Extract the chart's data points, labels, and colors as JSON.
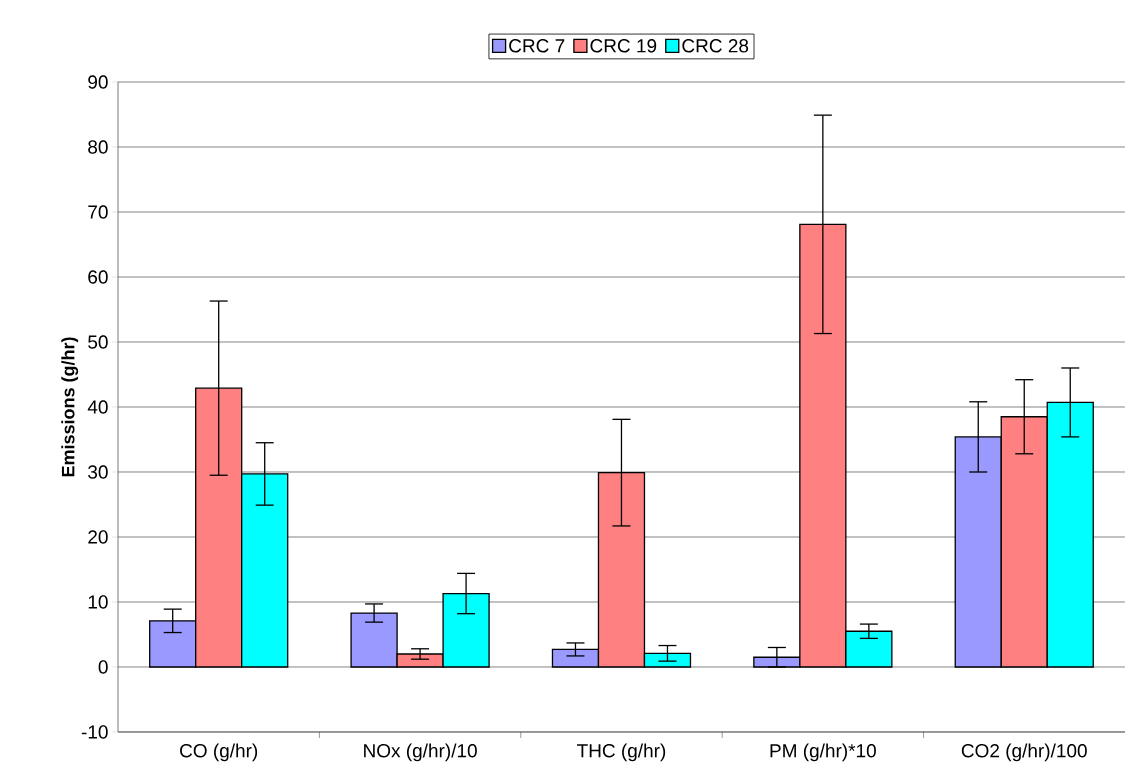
{
  "chart_data": {
    "type": "bar",
    "ylabel": "Emissions (g/hr)",
    "categories": [
      "CO (g/hr)",
      "NOx (g/hr)/10",
      "THC (g/hr)",
      "PM (g/hr)*10",
      "CO2 (g/hr)/100"
    ],
    "series": [
      {
        "name": "CRC 7",
        "color": "#9999ff",
        "values": [
          7.1,
          8.3,
          2.7,
          1.5,
          35.4
        ],
        "errors": [
          1.8,
          1.4,
          1.0,
          1.5,
          5.4
        ]
      },
      {
        "name": "CRC 19",
        "color": "#ff8080",
        "values": [
          42.9,
          2.0,
          29.9,
          68.1,
          38.5
        ],
        "errors": [
          13.4,
          0.8,
          8.2,
          16.8,
          5.7
        ]
      },
      {
        "name": "CRC 28",
        "color": "#00ffff",
        "values": [
          29.7,
          11.3,
          2.1,
          5.5,
          40.7
        ],
        "errors": [
          4.8,
          3.1,
          1.2,
          1.1,
          5.3
        ]
      }
    ],
    "ylim": [
      -10,
      90
    ],
    "yticks": [
      -10,
      0,
      10,
      20,
      30,
      40,
      50,
      60,
      70,
      80,
      90
    ],
    "grid": "y",
    "legend": "top"
  }
}
